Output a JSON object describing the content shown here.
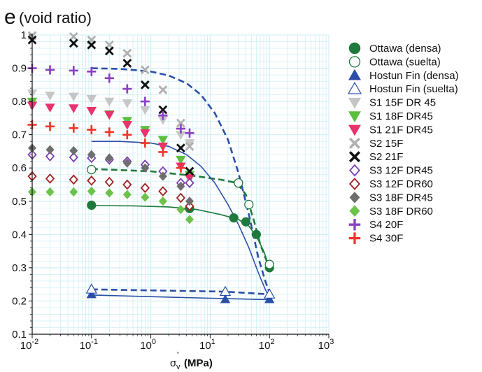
{
  "chart_data": {
    "type": "scatter",
    "title_symbol": "e",
    "title_text": "(void ratio)",
    "xlabel_main": "σ",
    "xlabel_sub": "v",
    "xlabel_prime": "'",
    "xlabel_unit": "(MPa)",
    "x_scale": "log",
    "xlim": [
      0.01,
      1000
    ],
    "ylim": [
      0.1,
      1.0
    ],
    "x_ticks": [
      {
        "value": 0.01,
        "base": "10",
        "exp": "-2"
      },
      {
        "value": 0.1,
        "base": "10",
        "exp": "-1"
      },
      {
        "value": 1,
        "base": "10",
        "exp": "0"
      },
      {
        "value": 10,
        "base": "10",
        "exp": "1"
      },
      {
        "value": 100,
        "base": "10",
        "exp": "2"
      },
      {
        "value": 1000,
        "base": "10",
        "exp": "3"
      }
    ],
    "y_ticks": [
      "0.1",
      "0.2",
      "0.3",
      "0.4",
      "0.5",
      "0.6",
      "0.7",
      "0.8",
      "0.9",
      "1"
    ],
    "grid": true,
    "grid_color": "#cdeef5",
    "legend_position": "right",
    "series": [
      {
        "name": "Ottawa (densa)",
        "marker": "circle-filled",
        "color": "#1e7a3c",
        "points": [
          [
            0.1,
            0.488
          ],
          [
            4.5,
            0.478
          ],
          [
            25,
            0.45
          ],
          [
            40,
            0.438
          ],
          [
            60,
            0.4
          ],
          [
            100,
            0.3
          ]
        ]
      },
      {
        "name": "Ottawa (suelta)",
        "marker": "circle-open",
        "color": "#1e7a3c",
        "points": [
          [
            0.1,
            0.595
          ],
          [
            30,
            0.555
          ],
          [
            45,
            0.49
          ],
          [
            100,
            0.31
          ]
        ]
      },
      {
        "name": "Hostun Fin (densa)",
        "marker": "triangle-filled",
        "color": "#2b4fa8",
        "points": [
          [
            0.1,
            0.22
          ],
          [
            18,
            0.205
          ],
          [
            100,
            0.205
          ]
        ]
      },
      {
        "name": "Hostun Fin (suelta)",
        "marker": "triangle-open",
        "color": "#2b4fa8",
        "points": [
          [
            0.1,
            0.235
          ],
          [
            18,
            0.228
          ],
          [
            100,
            0.22
          ]
        ]
      },
      {
        "name": "S1 15F DR 45",
        "marker": "triangle-down",
        "color": "#c6c6c6",
        "points": [
          [
            0.01,
            0.825
          ],
          [
            0.02,
            0.818
          ],
          [
            0.05,
            0.815
          ],
          [
            0.1,
            0.808
          ],
          [
            0.2,
            0.8
          ],
          [
            0.4,
            0.795
          ],
          [
            0.8,
            0.775
          ],
          [
            1.6,
            0.745
          ],
          [
            3.2,
            0.7
          ],
          [
            4.5,
            0.675
          ]
        ]
      },
      {
        "name": "S1 18F DR45",
        "marker": "triangle-down",
        "color": "#5bbf3f",
        "points": [
          [
            0.01,
            0.8
          ],
          [
            0.2,
            0.762
          ],
          [
            0.4,
            0.742
          ],
          [
            0.8,
            0.715
          ],
          [
            1.6,
            0.685
          ],
          [
            3.2,
            0.625
          ],
          [
            4.5,
            0.58
          ]
        ]
      },
      {
        "name": "S1 21F DR45",
        "marker": "triangle-down",
        "color": "#e8336d",
        "points": [
          [
            0.01,
            0.788
          ],
          [
            0.02,
            0.782
          ],
          [
            0.05,
            0.78
          ],
          [
            0.1,
            0.772
          ],
          [
            0.2,
            0.76
          ],
          [
            0.4,
            0.73
          ],
          [
            0.8,
            0.705
          ],
          [
            1.6,
            0.665
          ],
          [
            3.2,
            0.605
          ],
          [
            4.5,
            0.57
          ]
        ]
      },
      {
        "name": "S2 15F",
        "marker": "x",
        "color": "#b0b0b0",
        "points": [
          [
            0.01,
            0.998
          ],
          [
            0.05,
            0.995
          ],
          [
            0.1,
            0.985
          ],
          [
            0.2,
            0.97
          ],
          [
            0.4,
            0.945
          ],
          [
            0.8,
            0.895
          ],
          [
            1.6,
            0.835
          ],
          [
            3.2,
            0.735
          ],
          [
            4.5,
            0.665
          ]
        ]
      },
      {
        "name": "S2 21F",
        "marker": "x",
        "color": "#111111",
        "points": [
          [
            0.01,
            0.985
          ],
          [
            0.05,
            0.975
          ],
          [
            0.1,
            0.97
          ],
          [
            0.2,
            0.952
          ],
          [
            0.4,
            0.915
          ],
          [
            0.8,
            0.85
          ],
          [
            1.6,
            0.775
          ],
          [
            3.2,
            0.66
          ],
          [
            4.5,
            0.59
          ]
        ]
      },
      {
        "name": "S3 12F DR45",
        "marker": "diamond-open",
        "color": "#7b3fb0",
        "points": [
          [
            0.01,
            0.64
          ],
          [
            0.02,
            0.635
          ],
          [
            0.05,
            0.632
          ],
          [
            0.1,
            0.63
          ],
          [
            0.2,
            0.625
          ],
          [
            0.4,
            0.62
          ],
          [
            0.8,
            0.61
          ],
          [
            1.6,
            0.59
          ],
          [
            3.2,
            0.555
          ],
          [
            4.5,
            0.555
          ]
        ]
      },
      {
        "name": "S3 12F DR60",
        "marker": "diamond-open",
        "color": "#a02020",
        "points": [
          [
            0.01,
            0.575
          ],
          [
            0.02,
            0.568
          ],
          [
            0.05,
            0.565
          ],
          [
            0.1,
            0.562
          ],
          [
            0.2,
            0.558
          ],
          [
            0.4,
            0.55
          ],
          [
            0.8,
            0.54
          ],
          [
            1.6,
            0.53
          ],
          [
            3.2,
            0.51
          ],
          [
            4.5,
            0.485
          ]
        ]
      },
      {
        "name": "S3 18F DR45",
        "marker": "diamond-filled",
        "color": "#6e6e6e",
        "points": [
          [
            0.01,
            0.66
          ],
          [
            0.02,
            0.655
          ],
          [
            0.05,
            0.652
          ],
          [
            0.1,
            0.64
          ],
          [
            0.2,
            0.63
          ],
          [
            0.4,
            0.615
          ],
          [
            0.8,
            0.6
          ],
          [
            1.6,
            0.575
          ],
          [
            3.2,
            0.545
          ],
          [
            4.5,
            0.5
          ]
        ]
      },
      {
        "name": "S3 18F DR60",
        "marker": "diamond-filled",
        "color": "#6cc24a",
        "points": [
          [
            0.01,
            0.528
          ],
          [
            0.02,
            0.528
          ],
          [
            0.05,
            0.528
          ],
          [
            0.1,
            0.53
          ],
          [
            0.2,
            0.525
          ],
          [
            0.4,
            0.52
          ],
          [
            0.8,
            0.512
          ],
          [
            1.6,
            0.5
          ],
          [
            3.2,
            0.475
          ],
          [
            4.5,
            0.445
          ]
        ]
      },
      {
        "name": "S4 20F",
        "marker": "plus",
        "color": "#8a3fc0",
        "points": [
          [
            0.01,
            0.9
          ],
          [
            0.02,
            0.895
          ],
          [
            0.05,
            0.893
          ],
          [
            0.1,
            0.89
          ],
          [
            0.2,
            0.87
          ],
          [
            0.4,
            0.838
          ],
          [
            0.8,
            0.8
          ],
          [
            1.6,
            0.758
          ],
          [
            3.2,
            0.718
          ],
          [
            4.5,
            0.705
          ]
        ]
      },
      {
        "name": "S4 30F",
        "marker": "plus",
        "color": "#f0352a",
        "points": [
          [
            0.01,
            0.73
          ],
          [
            0.02,
            0.725
          ],
          [
            0.05,
            0.72
          ],
          [
            0.1,
            0.715
          ],
          [
            0.2,
            0.708
          ],
          [
            0.4,
            0.7
          ],
          [
            0.8,
            0.675
          ],
          [
            1.6,
            0.648
          ],
          [
            3.2,
            0.6
          ]
        ]
      }
    ],
    "fit_lines": [
      {
        "style": "dashed",
        "color": "#2b4fa8",
        "points": [
          [
            0.1,
            0.9
          ],
          [
            0.3,
            0.898
          ],
          [
            1,
            0.89
          ],
          [
            2,
            0.878
          ],
          [
            4,
            0.855
          ],
          [
            7,
            0.82
          ],
          [
            12,
            0.765
          ],
          [
            20,
            0.685
          ],
          [
            30,
            0.585
          ],
          [
            45,
            0.46
          ],
          [
            65,
            0.33
          ],
          [
            85,
            0.26
          ],
          [
            100,
            0.225
          ]
        ]
      },
      {
        "style": "dashed",
        "color": "#1e7a3c",
        "points": [
          [
            0.1,
            0.597
          ],
          [
            1,
            0.59
          ],
          [
            5,
            0.577
          ],
          [
            15,
            0.565
          ],
          [
            28,
            0.555
          ],
          [
            40,
            0.52
          ],
          [
            55,
            0.44
          ],
          [
            70,
            0.37
          ],
          [
            90,
            0.32
          ],
          [
            100,
            0.3
          ]
        ]
      },
      {
        "style": "solid",
        "color": "#2b4fa8",
        "points": [
          [
            0.1,
            0.68
          ],
          [
            0.3,
            0.68
          ],
          [
            1,
            0.675
          ],
          [
            2,
            0.665
          ],
          [
            4,
            0.64
          ],
          [
            7,
            0.605
          ],
          [
            12,
            0.555
          ],
          [
            20,
            0.49
          ],
          [
            30,
            0.43
          ],
          [
            45,
            0.36
          ],
          [
            65,
            0.285
          ],
          [
            85,
            0.235
          ],
          [
            100,
            0.21
          ]
        ]
      },
      {
        "style": "solid",
        "color": "#1e7a3c",
        "points": [
          [
            0.1,
            0.487
          ],
          [
            0.5,
            0.486
          ],
          [
            2,
            0.483
          ],
          [
            6,
            0.475
          ],
          [
            15,
            0.46
          ],
          [
            30,
            0.445
          ],
          [
            45,
            0.425
          ],
          [
            60,
            0.395
          ],
          [
            80,
            0.35
          ],
          [
            100,
            0.3
          ]
        ]
      },
      {
        "style": "dashed",
        "color": "#2b4fa8",
        "points": [
          [
            0.1,
            0.235
          ],
          [
            18,
            0.228
          ],
          [
            100,
            0.22
          ]
        ]
      },
      {
        "style": "solid",
        "color": "#2b4fa8",
        "points": [
          [
            0.1,
            0.218
          ],
          [
            18,
            0.207
          ],
          [
            100,
            0.204
          ]
        ]
      }
    ]
  }
}
